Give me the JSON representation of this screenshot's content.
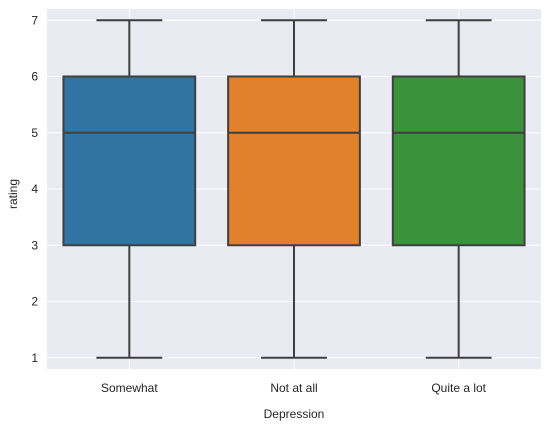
{
  "chart_data": {
    "type": "box",
    "xlabel": "Depression",
    "ylabel": "rating",
    "ylim": [
      0.8,
      7.2
    ],
    "yticks": [
      "1",
      "2",
      "3",
      "4",
      "5",
      "6",
      "7"
    ],
    "grid": true,
    "categories": [
      "Somewhat",
      "Not at all",
      "Quite a lot"
    ],
    "boxes": [
      {
        "category": "Somewhat",
        "min": 1,
        "q1": 3,
        "median": 5,
        "q3": 6,
        "max": 7,
        "color": "#3274a1"
      },
      {
        "category": "Not at all",
        "min": 1,
        "q1": 3,
        "median": 5,
        "q3": 6,
        "max": 7,
        "color": "#e1812c"
      },
      {
        "category": "Quite a lot",
        "min": 1,
        "q1": 3,
        "median": 5,
        "q3": 6,
        "max": 7,
        "color": "#3a923a"
      }
    ],
    "background_color": "#eaeaf2",
    "grid_color": "#ffffff",
    "line_color": "#3f3f3f"
  }
}
